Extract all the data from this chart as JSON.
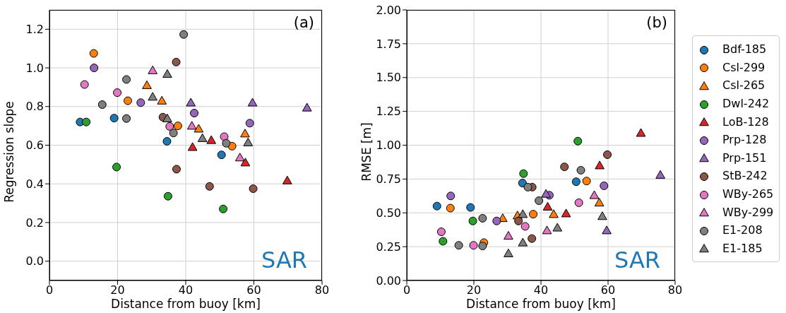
{
  "chart_data": [
    {
      "type": "scatter",
      "xlabel": "Distance from buoy [km]",
      "ylabel": "Regression slope",
      "xlim": [
        0,
        80
      ],
      "xticks": [
        0,
        20,
        40,
        60,
        80
      ],
      "ylim": [
        -0.1,
        1.3
      ],
      "yticks": [
        {
          "value": 0,
          "label": "0.0"
        },
        {
          "value": 0.2,
          "label": "0.2"
        },
        {
          "value": 0.4,
          "label": "0.4"
        },
        {
          "value": 0.6,
          "label": "0.6"
        },
        {
          "value": 0.8,
          "label": "0.8"
        },
        {
          "value": 1.0,
          "label": "1.0"
        },
        {
          "value": 1.2,
          "label": "1.2"
        }
      ],
      "grid": true,
      "legend": false,
      "annotations": [
        "(a)",
        "SAR"
      ],
      "series": [
        {
          "color": "#1f77b4",
          "marker": "circle",
          "x": [
            9,
            19,
            34.5,
            50.5
          ],
          "values": [
            0.72,
            0.74,
            0.62,
            0.55
          ]
        },
        {
          "color": "#ff7f0e",
          "marker": "circle",
          "x": [
            13,
            23,
            37.7,
            53.6
          ],
          "values": [
            1.075,
            0.83,
            0.7,
            0.595
          ]
        },
        {
          "color": "#ff7f0e",
          "marker": "triangle",
          "x": [
            28.6,
            33,
            43.8,
            57.4
          ],
          "values": [
            0.91,
            0.83,
            0.685,
            0.66
          ]
        },
        {
          "color": "#2ca02c",
          "marker": "circle",
          "x": [
            10.8,
            19.7,
            34.8,
            51
          ],
          "values": [
            0.72,
            0.487,
            0.336,
            0.27
          ]
        },
        {
          "color": "#d62728",
          "marker": "triangle",
          "x": [
            42,
            47.5,
            57.5,
            69.8
          ],
          "values": [
            0.59,
            0.626,
            0.51,
            0.417
          ]
        },
        {
          "color": "#9467bd",
          "marker": "circle",
          "x": [
            13.1,
            26.8,
            42.5,
            58.8
          ],
          "values": [
            1.0,
            0.82,
            0.766,
            0.714
          ]
        },
        {
          "color": "#9467bd",
          "marker": "triangle",
          "x": [
            41.5,
            59.6,
            75.6
          ],
          "values": [
            0.82,
            0.82,
            0.794
          ]
        },
        {
          "color": "#8c564b",
          "marker": "circle",
          "x": [
            33.3,
            37.2,
            37.3,
            47,
            59.8
          ],
          "values": [
            0.745,
            1.03,
            0.476,
            0.387,
            0.375
          ]
        },
        {
          "color": "#e377c2",
          "marker": "circle",
          "x": [
            10.3,
            19.9,
            35.3,
            51.3
          ],
          "values": [
            0.914,
            0.872,
            0.697,
            0.644
          ]
        },
        {
          "color": "#e377c2",
          "marker": "triangle",
          "x": [
            30.3,
            41.8,
            55.9
          ],
          "values": [
            0.987,
            0.7,
            0.536
          ]
        },
        {
          "color": "#7f7f7f",
          "marker": "circle",
          "x": [
            15.5,
            22.6,
            22.6,
            36.4,
            39.4,
            51.9
          ],
          "values": [
            0.81,
            0.94,
            0.738,
            0.663,
            1.173,
            0.61
          ]
        },
        {
          "color": "#7f7f7f",
          "marker": "triangle",
          "x": [
            30.3,
            34.6,
            34.6,
            44.9,
            58.3
          ],
          "values": [
            0.85,
            0.968,
            0.738,
            0.636,
            0.614
          ]
        }
      ]
    },
    {
      "type": "scatter",
      "xlabel": "Distance from buoy [km]",
      "ylabel": "RMSE [m]",
      "xlim": [
        0,
        80
      ],
      "xticks": [
        0,
        20,
        40,
        60,
        80
      ],
      "ylim": [
        0,
        2
      ],
      "yticks": [
        {
          "value": 0,
          "label": "0.00"
        },
        {
          "value": 0.25,
          "label": "0.25"
        },
        {
          "value": 0.5,
          "label": "0.50"
        },
        {
          "value": 0.75,
          "label": "0.75"
        },
        {
          "value": 1.0,
          "label": "1.00"
        },
        {
          "value": 1.25,
          "label": "1.25"
        },
        {
          "value": 1.5,
          "label": "1.50"
        },
        {
          "value": 1.75,
          "label": "1.75"
        },
        {
          "value": 2.0,
          "label": "2.00"
        }
      ],
      "grid": true,
      "legend": "right",
      "annotations": [
        "(b)",
        "SAR"
      ],
      "series": [
        {
          "name": "Bdf-185",
          "color": "#1f77b4",
          "marker": "circle",
          "x": [
            9,
            19,
            34.5,
            50.5
          ],
          "values": [
            0.55,
            0.54,
            0.72,
            0.73
          ]
        },
        {
          "name": "Csl-299",
          "color": "#ff7f0e",
          "marker": "circle",
          "x": [
            13,
            23,
            37.7,
            53.6
          ],
          "values": [
            0.535,
            0.28,
            0.49,
            0.735
          ]
        },
        {
          "name": "Csl-265",
          "color": "#ff7f0e",
          "marker": "triangle",
          "x": [
            28.6,
            33,
            43.8,
            57.4
          ],
          "values": [
            0.46,
            0.48,
            0.49,
            0.575
          ]
        },
        {
          "name": "Dwl-242",
          "color": "#2ca02c",
          "marker": "circle",
          "x": [
            10.8,
            19.7,
            34.8,
            51
          ],
          "values": [
            0.29,
            0.44,
            0.79,
            1.03
          ]
        },
        {
          "name": "LoB-128",
          "color": "#d62728",
          "marker": "triangle",
          "x": [
            42,
            47.5,
            57.5,
            69.8
          ],
          "values": [
            0.545,
            0.495,
            0.85,
            1.09
          ]
        },
        {
          "name": "Prp-128",
          "color": "#9467bd",
          "marker": "circle",
          "x": [
            13.1,
            26.8,
            42.5,
            58.8
          ],
          "values": [
            0.625,
            0.44,
            0.63,
            0.7
          ]
        },
        {
          "name": "Prp-151",
          "color": "#9467bd",
          "marker": "triangle",
          "x": [
            41.5,
            59.6,
            75.6
          ],
          "values": [
            0.64,
            0.37,
            0.78
          ]
        },
        {
          "name": "StB-242",
          "color": "#8c564b",
          "marker": "circle",
          "x": [
            33.3,
            37.4,
            37.3,
            47,
            59.8
          ],
          "values": [
            0.44,
            0.69,
            0.31,
            0.84,
            0.93
          ]
        },
        {
          "name": "WBy-265",
          "color": "#e377c2",
          "marker": "circle",
          "x": [
            10.3,
            19.9,
            35.3,
            51.3
          ],
          "values": [
            0.36,
            0.26,
            0.4,
            0.575
          ]
        },
        {
          "name": "WBy-299",
          "color": "#e377c2",
          "marker": "triangle",
          "x": [
            30.3,
            41.8,
            55.9
          ],
          "values": [
            0.33,
            0.37,
            0.63
          ]
        },
        {
          "name": "E1-208",
          "color": "#7f7f7f",
          "marker": "circle",
          "x": [
            15.5,
            22.6,
            22.6,
            36.1,
            39.4,
            51.9
          ],
          "values": [
            0.26,
            0.46,
            0.255,
            0.69,
            0.59,
            0.815
          ]
        },
        {
          "name": "E1-185",
          "color": "#7f7f7f",
          "marker": "triangle",
          "x": [
            30.3,
            34.6,
            34.6,
            44.9,
            58.3
          ],
          "values": [
            0.2,
            0.49,
            0.28,
            0.39,
            0.475
          ]
        }
      ]
    }
  ]
}
